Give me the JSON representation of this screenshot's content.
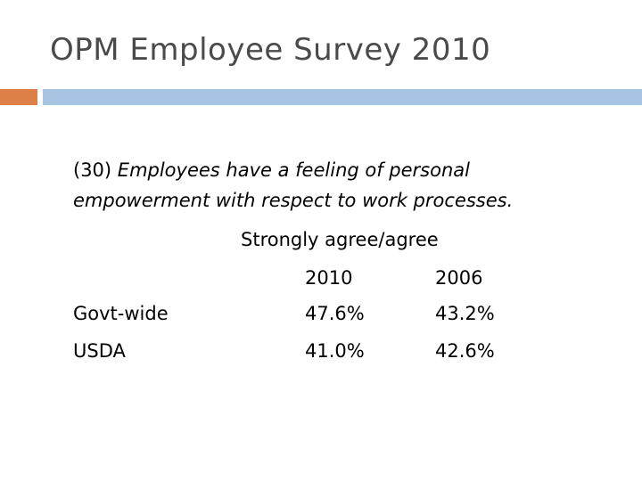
{
  "slide": {
    "title": "OPM Employee Survey 2010"
  },
  "question": {
    "number": "(30)",
    "text": "Employees have a feeling of personal empowerment with respect to work processes."
  },
  "table": {
    "heading": "Strongly agree/agree",
    "years": [
      "2010",
      "2006"
    ],
    "rows": [
      {
        "label": "Govt-wide",
        "v2010": "47.6%",
        "v2006": "43.2%"
      },
      {
        "label": "USDA",
        "v2010": "41.0%",
        "v2006": "42.6%"
      }
    ]
  },
  "colors": {
    "accent": "#dd8048",
    "rule": "#a7c5e3",
    "title": "#4a4a4a"
  }
}
